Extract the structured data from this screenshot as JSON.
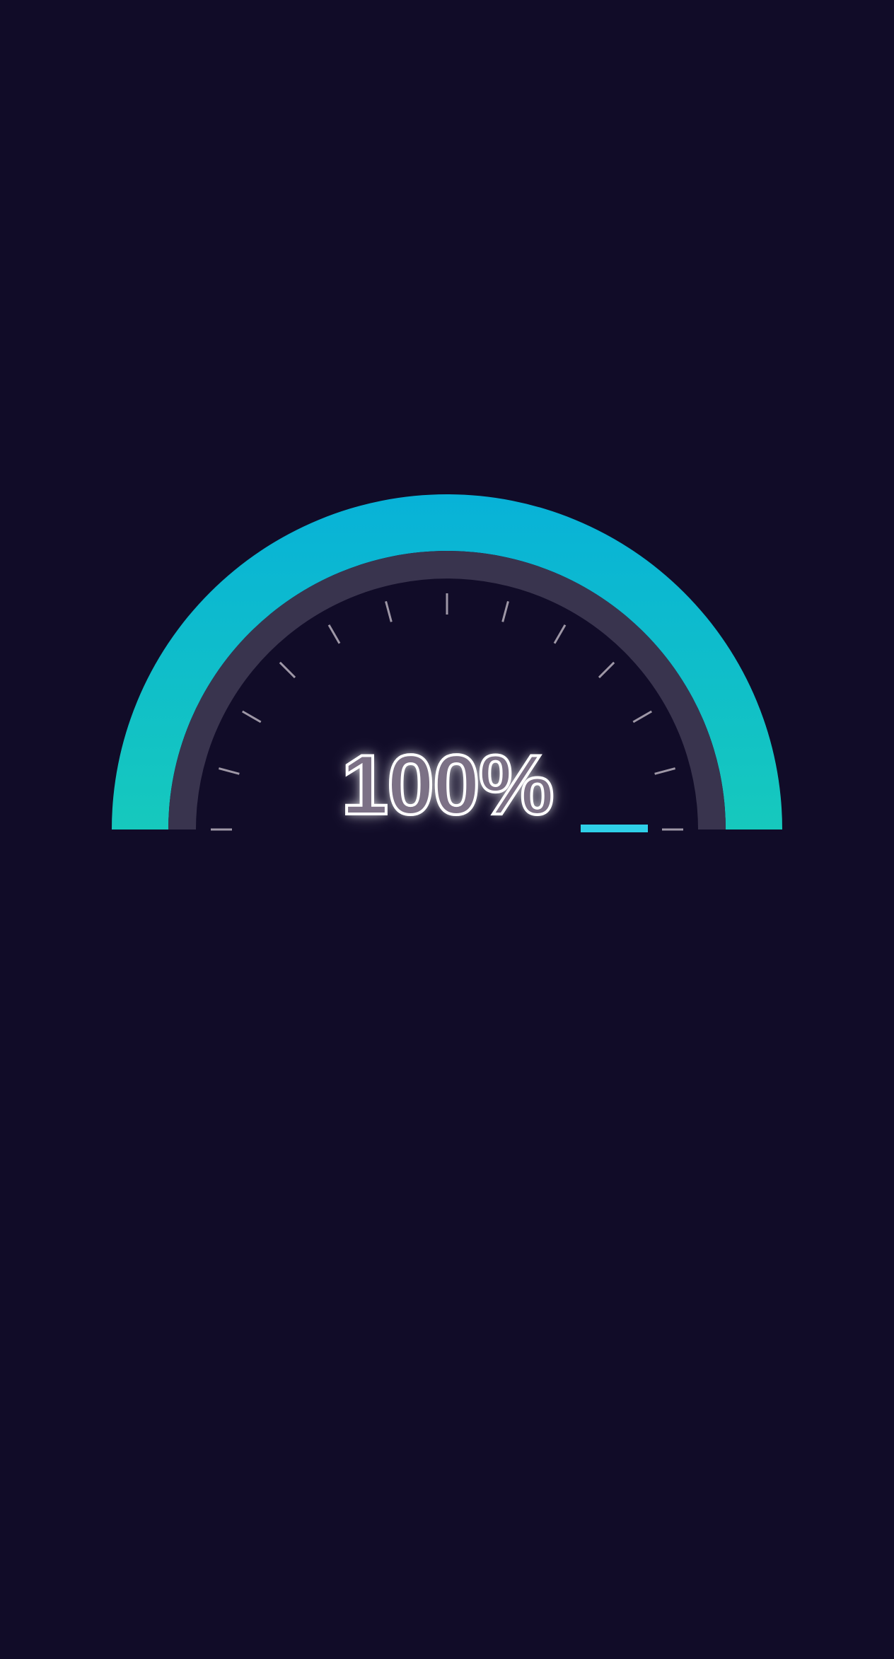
{
  "gauge": {
    "value_label": "100%",
    "value_percent": 100,
    "tick_count": 13,
    "colors": {
      "background": "#110c28",
      "fill_top": "#08b2d8",
      "fill_bottom": "#16c9bd",
      "track": "#39344e",
      "tick": "#9e97a6",
      "indicator": "#2fd0e8"
    }
  }
}
